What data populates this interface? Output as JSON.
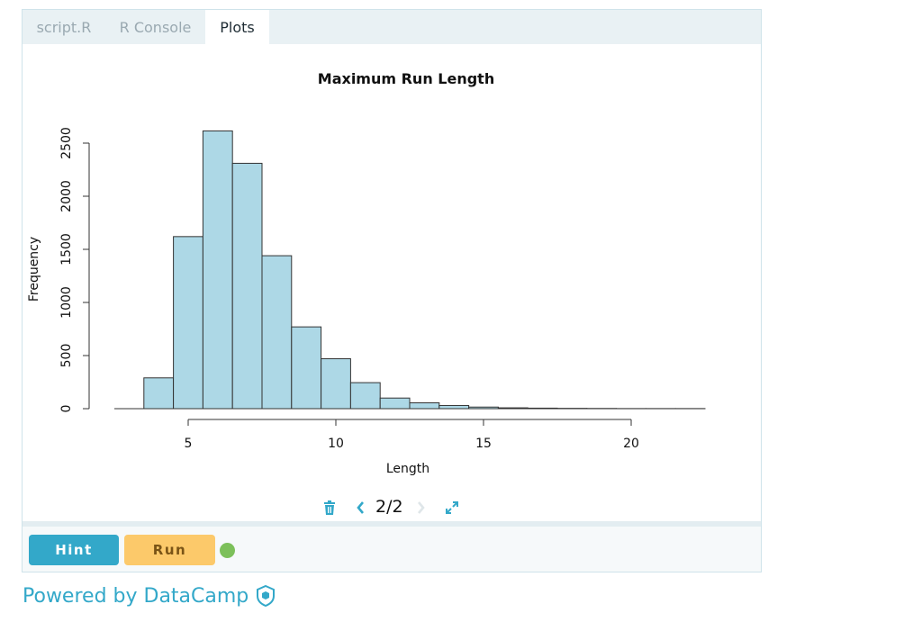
{
  "tabs": [
    {
      "label": "script.R"
    },
    {
      "label": "R Console"
    },
    {
      "label": "Plots"
    }
  ],
  "active_tab": "Plots",
  "chart_data": {
    "type": "bar",
    "title": "Maximum Run Length",
    "xlabel": "Length",
    "ylabel": "Frequency",
    "bin_edges": [
      2.5,
      3.5,
      4.5,
      5.5,
      6.5,
      7.5,
      8.5,
      9.5,
      10.5,
      11.5,
      12.5,
      13.5,
      14.5,
      15.5,
      16.5,
      17.5,
      18.5,
      19.5,
      20.5,
      21.5,
      22.5
    ],
    "values": [
      0,
      290,
      1620,
      2615,
      2310,
      1440,
      770,
      470,
      245,
      100,
      55,
      30,
      15,
      8,
      5,
      3,
      2,
      1,
      1,
      1
    ],
    "xticks": [
      "5",
      "10",
      "15",
      "20"
    ],
    "yticks": [
      "0",
      "500",
      "1000",
      "1500",
      "2000",
      "2500"
    ],
    "xlim": [
      5,
      20
    ],
    "ylim": [
      0,
      2500
    ],
    "grid": false,
    "bar_color": "#add8e6"
  },
  "plot_nav": {
    "page_indicator": "2/2"
  },
  "buttons": {
    "hint": "Hint",
    "run": "Run"
  },
  "colors": {
    "accent": "#33a8c9",
    "run": "#fcc96a",
    "status": "#7cc05a"
  },
  "footer": {
    "powered_by": "Powered by DataCamp"
  }
}
